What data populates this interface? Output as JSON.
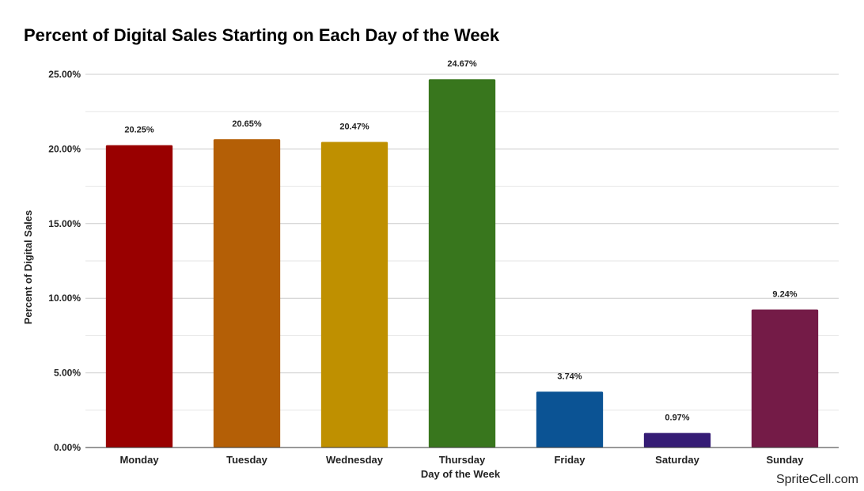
{
  "chart_data": {
    "type": "bar",
    "title": "Percent of Digital Sales Starting on Each Day of the Week",
    "xlabel": "Day of the Week",
    "ylabel": "Percent of Digital Sales",
    "categories": [
      "Monday",
      "Tuesday",
      "Wednesday",
      "Thursday",
      "Friday",
      "Saturday",
      "Sunday"
    ],
    "values": [
      20.25,
      20.65,
      20.47,
      24.67,
      3.74,
      0.97,
      9.24
    ],
    "value_labels": [
      "20.25%",
      "20.65%",
      "20.47%",
      "24.67%",
      "3.74%",
      "0.97%",
      "9.24%"
    ],
    "colors": [
      "#990000",
      "#b45f06",
      "#bf9000",
      "#38761d",
      "#0b5394",
      "#351c75",
      "#741b47"
    ],
    "ylim": [
      0,
      25
    ],
    "yticks": [
      0,
      5,
      10,
      15,
      20,
      25
    ],
    "ytick_labels": [
      "0.00%",
      "5.00%",
      "10.00%",
      "15.00%",
      "20.00%",
      "25.00%"
    ],
    "grid": true,
    "legend": "none"
  },
  "watermark": "SpriteCell.com"
}
